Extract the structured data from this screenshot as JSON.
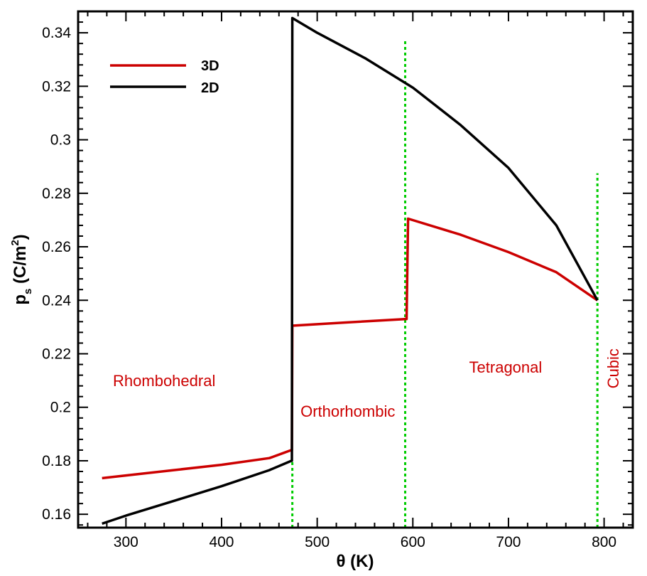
{
  "chart_data": {
    "type": "line",
    "title": "",
    "xlabel": "θ (K)",
    "ylabel_main": "p",
    "ylabel_sub": "s",
    "ylabel_unit_open": " (C/m",
    "ylabel_unit_sup": "2",
    "ylabel_unit_close": ")",
    "xlim": [
      250,
      830
    ],
    "ylim": [
      0.155,
      0.348
    ],
    "x_ticks": [
      300,
      400,
      500,
      600,
      700,
      800
    ],
    "x_tick_labels": [
      "300",
      "400",
      "500",
      "600",
      "700",
      "800"
    ],
    "y_ticks": [
      0.16,
      0.18,
      0.2,
      0.22,
      0.24,
      0.26,
      0.28,
      0.3,
      0.32,
      0.34
    ],
    "y_tick_labels": [
      "0.16",
      "0.18",
      "0.2",
      "0.22",
      "0.24",
      "0.26",
      "0.28",
      "0.3",
      "0.32",
      "0.34"
    ],
    "legend_position": "top-left",
    "series": [
      {
        "name": "3D",
        "color": "#cc0000",
        "x": [
          275,
          300,
          350,
          400,
          450,
          473,
          473.5,
          474,
          530,
          593,
          593.5,
          595,
          650,
          700,
          750,
          793
        ],
        "y": [
          0.1735,
          0.1745,
          0.1765,
          0.1785,
          0.181,
          0.184,
          0.184,
          0.2305,
          0.2317,
          0.233,
          0.233,
          0.2705,
          0.2645,
          0.258,
          0.2505,
          0.24
        ]
      },
      {
        "name": "2D",
        "color": "#000000",
        "x": [
          275,
          300,
          350,
          400,
          450,
          473,
          473.5,
          474,
          500,
          550,
          600,
          650,
          700,
          750,
          793
        ],
        "y": [
          0.1565,
          0.1595,
          0.165,
          0.1705,
          0.1765,
          0.18,
          0.18,
          0.3455,
          0.34,
          0.3305,
          0.3195,
          0.3055,
          0.2895,
          0.268,
          0.24
        ]
      }
    ],
    "phase_boundaries": {
      "color": "#00cc00",
      "lines": [
        {
          "x": 474,
          "y_from": 0.155,
          "y_to": 0.18
        },
        {
          "x": 592,
          "y_from": 0.155,
          "y_to": 0.3375
        },
        {
          "x": 793,
          "y_from": 0.155,
          "y_to": 0.2875
        }
      ]
    },
    "annotations": [
      {
        "text": "Rhombohedral",
        "x": 340,
        "y": 0.2095,
        "rotate": 0,
        "color": "#cc0000"
      },
      {
        "text": "Orthorhombic",
        "x": 532,
        "y": 0.198,
        "rotate": 0,
        "color": "#cc0000"
      },
      {
        "text": "Tetragonal",
        "x": 697,
        "y": 0.2145,
        "rotate": 0,
        "color": "#cc0000"
      },
      {
        "text": "Cubic",
        "x": 811,
        "y": 0.2145,
        "rotate": -90,
        "color": "#cc0000"
      }
    ]
  }
}
